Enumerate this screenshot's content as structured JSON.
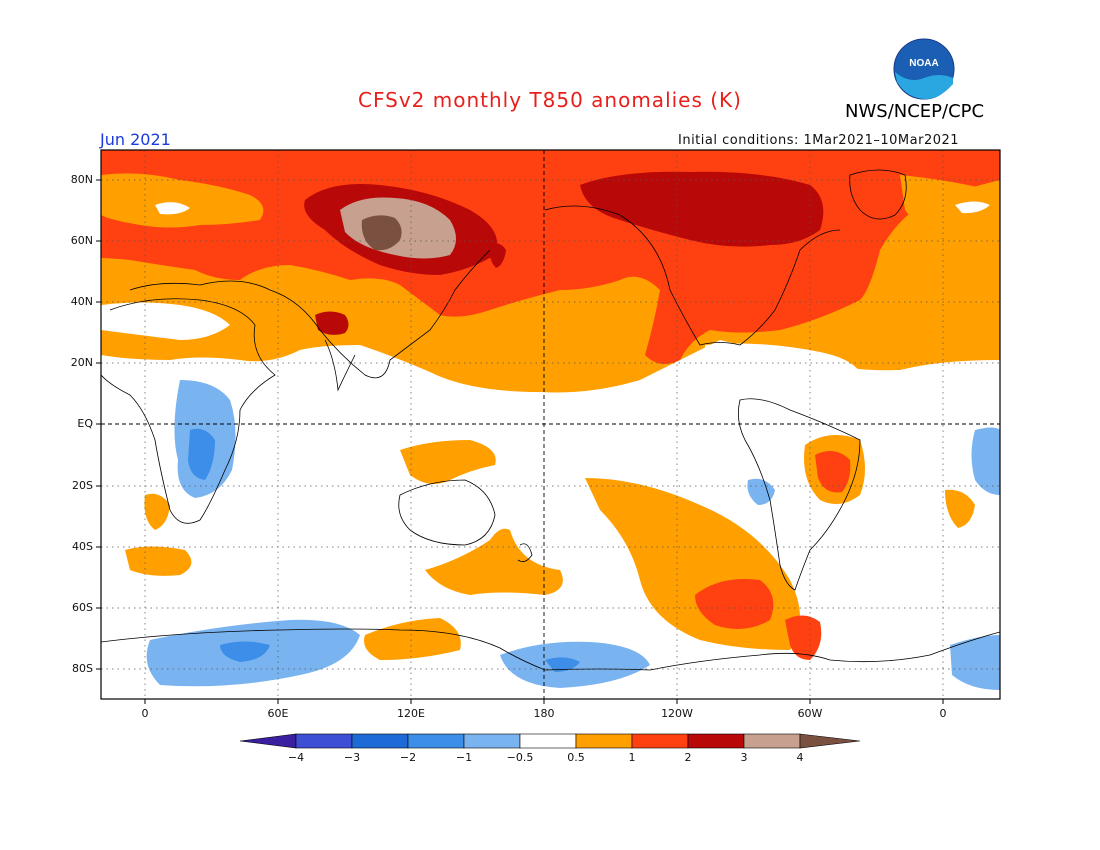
{
  "header": {
    "title": "CFSv2 monthly T850 anomalies (K)",
    "agency": "NWS/NCEP/CPC",
    "month": "Jun 2021",
    "initial_conditions": "Initial conditions: 1Mar2021–10Mar2021",
    "logo_text": "NOAA"
  },
  "axes": {
    "lat_labels": [
      "80N",
      "60N",
      "40N",
      "20N",
      "EQ",
      "20S",
      "40S",
      "60S",
      "80S"
    ],
    "lon_labels": [
      "0",
      "60E",
      "120E",
      "180",
      "120W",
      "60W",
      "0"
    ]
  },
  "colorbar": {
    "labels": [
      "−4",
      "−3",
      "−2",
      "−1",
      "−0.5",
      "0.5",
      "1",
      "2",
      "3",
      "4"
    ],
    "colors": [
      "#3a1fa0",
      "#3c4fd5",
      "#1e6bd8",
      "#3d8ee8",
      "#7ab4f0",
      "#ffffff",
      "#ff9f00",
      "#ff4010",
      "#b80808",
      "#c8a090",
      "#7a5040"
    ]
  },
  "map_colors": {
    "ocean": "#ffffff",
    "land_outline": "#000000",
    "warm_light": "#ff9f00",
    "warm_mid": "#ff4010",
    "warm_dark": "#b80808",
    "warm_vdark": "#c8a090",
    "warm_extreme": "#7a5040",
    "cool_light": "#7ab4f0",
    "cool_mid": "#3d8ee8"
  }
}
